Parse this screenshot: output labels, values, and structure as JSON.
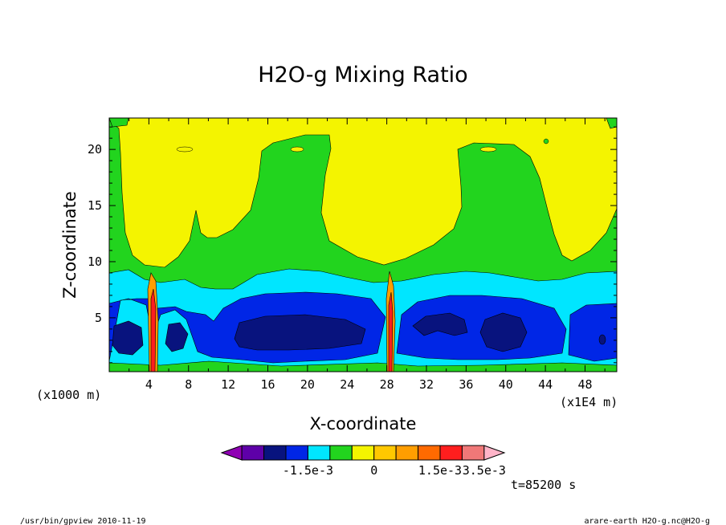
{
  "chart_data": {
    "type": "heatmap",
    "title": "H2O-g Mixing Ratio",
    "xlabel": "X-coordinate",
    "ylabel": "Z-coordinate",
    "x_unit_note": "(x1E4 m)",
    "y_unit_note": "(x1000 m)",
    "x_ticks": [
      "4",
      "8",
      "12",
      "16",
      "20",
      "24",
      "28",
      "32",
      "36",
      "40",
      "44",
      "48"
    ],
    "y_ticks": [
      "5",
      "10",
      "15",
      "20"
    ],
    "xlim": [
      0,
      51.2
    ],
    "ylim": [
      0.2,
      22.8
    ],
    "legend_labels": [
      "-1.5e-3",
      "0",
      "1.5e-3",
      "3.5e-3"
    ],
    "legend_colors": [
      "#8f00b4",
      "#5e00a8",
      "#08137e",
      "#0026e6",
      "#00e6ff",
      "#22d41e",
      "#f4f400",
      "#ffc800",
      "#ff9e00",
      "#ff6a00",
      "#ff1e1e",
      "#f07878",
      "#ffb4c8"
    ],
    "colors": {
      "yellow": "#f4f400",
      "green": "#22d41e",
      "cyan": "#00e6ff",
      "blue": "#0026e6",
      "navy": "#08137e",
      "orange": "#ff9e00",
      "red": "#ff1e1e"
    }
  },
  "annotation_time": "t=85200 s",
  "footer_left": "/usr/bin/gpview  2010-11-19",
  "footer_right": "arare-earth_H2O-g.nc@H2O-g"
}
